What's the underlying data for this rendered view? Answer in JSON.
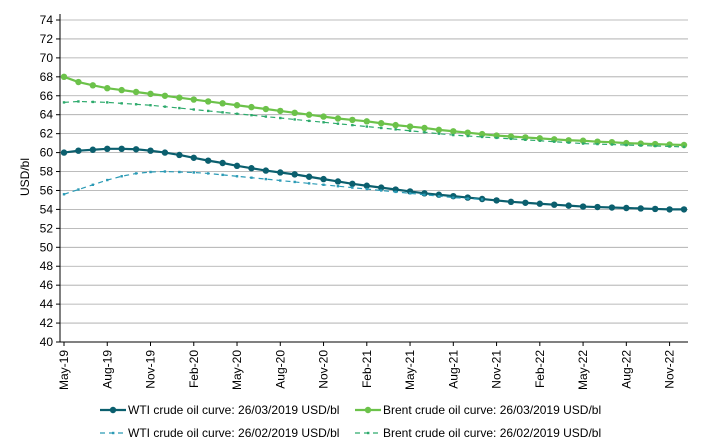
{
  "chart_data": {
    "type": "line",
    "title": "",
    "xlabel": "",
    "ylabel": "USD/bl",
    "ylim": [
      40,
      74
    ],
    "y_ticks": [
      40,
      42,
      44,
      46,
      48,
      50,
      52,
      54,
      56,
      58,
      60,
      62,
      64,
      66,
      68,
      70,
      72,
      74
    ],
    "x_tick_labels": [
      "May-19",
      "Aug-19",
      "Nov-19",
      "Feb-20",
      "May-20",
      "Aug-20",
      "Nov-20",
      "Feb-21",
      "May-21",
      "Aug-21",
      "Nov-21",
      "Feb-22",
      "May-22",
      "Aug-22",
      "Nov-22"
    ],
    "months": 44,
    "grid": "horizontal",
    "legend_position": "bottom",
    "series": [
      {
        "name": "WTI crude oil curve: 26/03/2019 USD/bl",
        "color": "#0b5f6e",
        "style": "solid",
        "values": [
          60.0,
          60.2,
          60.3,
          60.4,
          60.4,
          60.35,
          60.2,
          60.0,
          59.75,
          59.45,
          59.15,
          58.9,
          58.6,
          58.35,
          58.1,
          57.9,
          57.7,
          57.45,
          57.2,
          56.95,
          56.7,
          56.5,
          56.3,
          56.1,
          55.9,
          55.7,
          55.55,
          55.4,
          55.25,
          55.1,
          54.95,
          54.8,
          54.7,
          54.6,
          54.5,
          54.4,
          54.3,
          54.25,
          54.2,
          54.15,
          54.1,
          54.05,
          54.0,
          54.0
        ]
      },
      {
        "name": "Brent crude oil curve: 26/03/2019 USD/bl",
        "color": "#6cc24a",
        "style": "solid",
        "values": [
          68.0,
          67.45,
          67.1,
          66.8,
          66.6,
          66.4,
          66.2,
          66.0,
          65.8,
          65.6,
          65.4,
          65.2,
          65.0,
          64.8,
          64.6,
          64.4,
          64.2,
          64.0,
          63.8,
          63.6,
          63.45,
          63.3,
          63.1,
          62.9,
          62.75,
          62.6,
          62.4,
          62.25,
          62.1,
          61.95,
          61.8,
          61.7,
          61.6,
          61.5,
          61.4,
          61.3,
          61.25,
          61.15,
          61.1,
          61.0,
          60.95,
          60.9,
          60.85,
          60.8
        ]
      },
      {
        "name": "WTI crude oil curve: 26/02/2019 USD/bl",
        "color": "#2a9ab5",
        "style": "dashed",
        "values": [
          55.6,
          56.1,
          56.6,
          57.1,
          57.5,
          57.8,
          57.95,
          58.0,
          57.95,
          57.9,
          57.8,
          57.65,
          57.5,
          57.35,
          57.2,
          57.05,
          56.9,
          56.75,
          56.6,
          56.45,
          56.3,
          56.15,
          56.0,
          55.85,
          55.7,
          55.55,
          55.4,
          55.25,
          55.15,
          55.05
        ]
      },
      {
        "name": "Brent crude oil curve: 26/02/2019 USD/bl",
        "color": "#2daa6c",
        "style": "dashed",
        "values": [
          65.3,
          65.4,
          65.35,
          65.3,
          65.2,
          65.1,
          65.0,
          64.85,
          64.7,
          64.55,
          64.4,
          64.25,
          64.1,
          63.95,
          63.8,
          63.65,
          63.5,
          63.35,
          63.2,
          63.05,
          62.9,
          62.75,
          62.6,
          62.45,
          62.3,
          62.15,
          62.0,
          61.85,
          61.75,
          61.65,
          61.55,
          61.45,
          61.35,
          61.25,
          61.15,
          61.05,
          60.95,
          60.9,
          60.85,
          60.8,
          60.75,
          60.7,
          60.65,
          60.6
        ]
      }
    ]
  }
}
